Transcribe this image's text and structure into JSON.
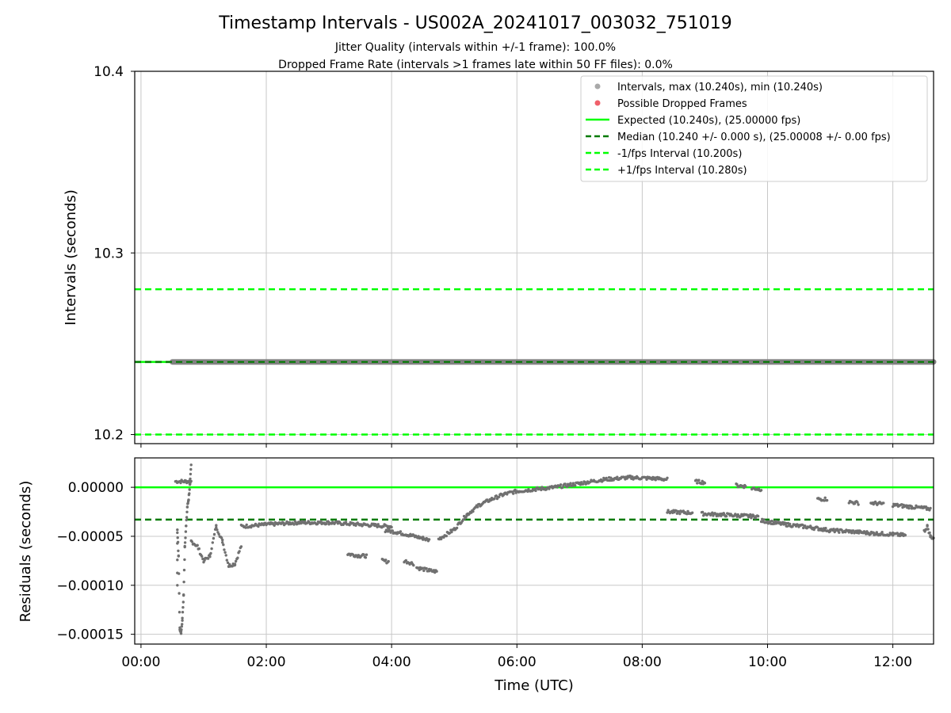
{
  "chart_data": [
    {
      "type": "scatter",
      "title": "Timestamp Intervals - US002A_20241017_003032_751019",
      "subtitle_lines": [
        "Jitter Quality (intervals within +/-1 frame): 100.0%",
        "Dropped Frame Rate (intervals >1 frames late within 50 FF files): 0.0%"
      ],
      "ylabel": "Intervals (seconds)",
      "ylim": [
        10.195,
        10.4
      ],
      "yticks": [
        "10.2",
        "10.3",
        "10.4"
      ],
      "ytick_values": [
        10.2,
        10.3,
        10.4
      ],
      "xlim_hours": [
        -0.1,
        12.65
      ],
      "grid": true,
      "legend_position": "top-right",
      "legend": [
        "Intervals, max (10.240s), min (10.240s)",
        "Possible Dropped Frames",
        "Expected (10.240s), (25.00000 fps)",
        "Median (10.240 +/- 0.000 s), (25.00008 +/- 0.00 fps)",
        "-1/fps Interval (10.200s)",
        "+1/fps Interval (10.280s)"
      ],
      "series": [
        {
          "name": "Intervals, max (10.240s), min (10.240s)",
          "x_range_hours": [
            0.5,
            12.65
          ],
          "y": 10.24,
          "color": "#808080"
        },
        {
          "name": "Possible Dropped Frames",
          "x": [],
          "y": [],
          "color": "#f0606a"
        }
      ],
      "reference_lines": [
        {
          "name": "Expected (10.240s), (25.00000 fps)",
          "y": 10.24,
          "style": "solid",
          "color": "#00ff00"
        },
        {
          "name": "Median (10.240 +/- 0.000 s), (25.00008 +/- 0.00 fps)",
          "y": 10.24,
          "style": "dashed",
          "color": "#007a00"
        },
        {
          "name": "-1/fps Interval (10.200s)",
          "y": 10.2,
          "style": "dashed",
          "color": "#00ff00"
        },
        {
          "name": "+1/fps Interval (10.280s)",
          "y": 10.28,
          "style": "dashed",
          "color": "#00ff00"
        }
      ]
    },
    {
      "type": "scatter",
      "xlabel": "Time (UTC)",
      "ylabel": "Residuals (seconds)",
      "ylim": [
        -0.00016,
        3e-05
      ],
      "yticks": [
        "0.00000",
        "−0.00005",
        "−0.00010",
        "−0.00015"
      ],
      "ytick_values": [
        0,
        -5e-05,
        -0.0001,
        -0.00015
      ],
      "xticks": [
        "00:00",
        "02:00",
        "04:00",
        "06:00",
        "08:00",
        "10:00",
        "12:00"
      ],
      "xtick_hours": [
        0,
        2,
        4,
        6,
        8,
        10,
        12
      ],
      "xlim_hours": [
        -0.1,
        12.65
      ],
      "grid": true,
      "reference_lines": [
        {
          "name": "Expected",
          "y": 0,
          "style": "solid",
          "color": "#00ff00"
        },
        {
          "name": "Median",
          "y": -3.3e-05,
          "style": "dashed",
          "color": "#007a00"
        }
      ],
      "series": [
        {
          "name": "Residuals",
          "color": "#707070",
          "segments": [
            {
              "x": [
                0.55,
                0.8
              ],
              "y": [
                6e-06,
                6e-06
              ]
            },
            {
              "x": [
                0.58,
                0.58,
                0.6,
                0.62,
                0.64,
                0.66,
                0.68,
                0.7,
                0.72,
                0.74,
                0.76,
                0.78,
                0.8
              ],
              "y": [
                -0.0001,
                -4.5e-05,
                -7e-05,
                -0.000145,
                -0.000148,
                -0.000135,
                -0.00011,
                -6e-05,
                -4e-05,
                -2e-05,
                -1.2e-05,
                2e-06,
                2.2e-05
              ]
            },
            {
              "x": [
                0.8,
                0.9,
                1.0,
                1.1,
                1.2,
                1.3,
                1.4,
                1.5,
                1.6
              ],
              "y": [
                -5.5e-05,
                -6e-05,
                -7.5e-05,
                -7e-05,
                -4e-05,
                -5.5e-05,
                -8e-05,
                -7.8e-05,
                -6e-05
              ]
            },
            {
              "x": [
                1.6,
                2.0,
                2.5,
                3.0,
                3.5,
                4.0
              ],
              "y": [
                -4e-05,
                -3.8e-05,
                -3.6e-05,
                -3.6e-05,
                -3.8e-05,
                -4e-05
              ]
            },
            {
              "x": [
                3.3,
                3.5,
                3.6
              ],
              "y": [
                -6.8e-05,
                -7e-05,
                -7e-05
              ]
            },
            {
              "x": [
                3.85,
                3.95
              ],
              "y": [
                -7.5e-05,
                -7.6e-05
              ]
            },
            {
              "x": [
                3.9,
                4.1,
                4.3,
                4.5,
                4.6
              ],
              "y": [
                -4.4e-05,
                -4.6e-05,
                -4.9e-05,
                -5.2e-05,
                -5.4e-05
              ]
            },
            {
              "x": [
                4.2,
                4.35
              ],
              "y": [
                -7.5e-05,
                -7.8e-05
              ]
            },
            {
              "x": [
                4.4,
                4.6,
                4.72
              ],
              "y": [
                -8.2e-05,
                -8.5e-05,
                -8.6e-05
              ]
            },
            {
              "x": [
                4.75,
                5.0,
                5.2,
                5.4,
                5.6,
                5.8,
                6.0,
                6.3,
                6.6,
                7.0,
                7.4,
                7.8,
                8.2,
                8.4
              ],
              "y": [
                -5.3e-05,
                -4.3e-05,
                -2.8e-05,
                -1.8e-05,
                -1.2e-05,
                -7e-06,
                -4e-06,
                -2e-06,
                0,
                4e-06,
                8e-06,
                1e-05,
                9e-06,
                8e-06
              ]
            },
            {
              "x": [
                8.85,
                9.0
              ],
              "y": [
                6e-06,
                5e-06
              ]
            },
            {
              "x": [
                9.5,
                9.65
              ],
              "y": [
                2e-06,
                1e-06
              ]
            },
            {
              "x": [
                9.75,
                9.9
              ],
              "y": [
                -1e-06,
                -2e-06
              ]
            },
            {
              "x": [
                8.4,
                8.8
              ],
              "y": [
                -2.5e-05,
                -2.6e-05
              ]
            },
            {
              "x": [
                8.95,
                9.3,
                9.6,
                9.85
              ],
              "y": [
                -2.7e-05,
                -2.8e-05,
                -2.9e-05,
                -3e-05
              ]
            },
            {
              "x": [
                9.9,
                10.3,
                10.7,
                11.0,
                11.3,
                11.7,
                12.0,
                12.2
              ],
              "y": [
                -3.4e-05,
                -3.8e-05,
                -4.1e-05,
                -4.4e-05,
                -4.5e-05,
                -4.7e-05,
                -4.8e-05,
                -4.9e-05
              ]
            },
            {
              "x": [
                10.8,
                10.95
              ],
              "y": [
                -1.2e-05,
                -1.2e-05
              ]
            },
            {
              "x": [
                11.3,
                11.45
              ],
              "y": [
                -1.5e-05,
                -1.6e-05
              ]
            },
            {
              "x": [
                11.65,
                11.85
              ],
              "y": [
                -1.6e-05,
                -1.7e-05
              ]
            },
            {
              "x": [
                12.0,
                12.3,
                12.6
              ],
              "y": [
                -1.8e-05,
                -2e-05,
                -2.2e-05
              ]
            },
            {
              "x": [
                12.5,
                12.55,
                12.6,
                12.65
              ],
              "y": [
                -4.5e-05,
                -4e-05,
                -5e-05,
                -5.2e-05
              ]
            }
          ]
        }
      ]
    }
  ]
}
